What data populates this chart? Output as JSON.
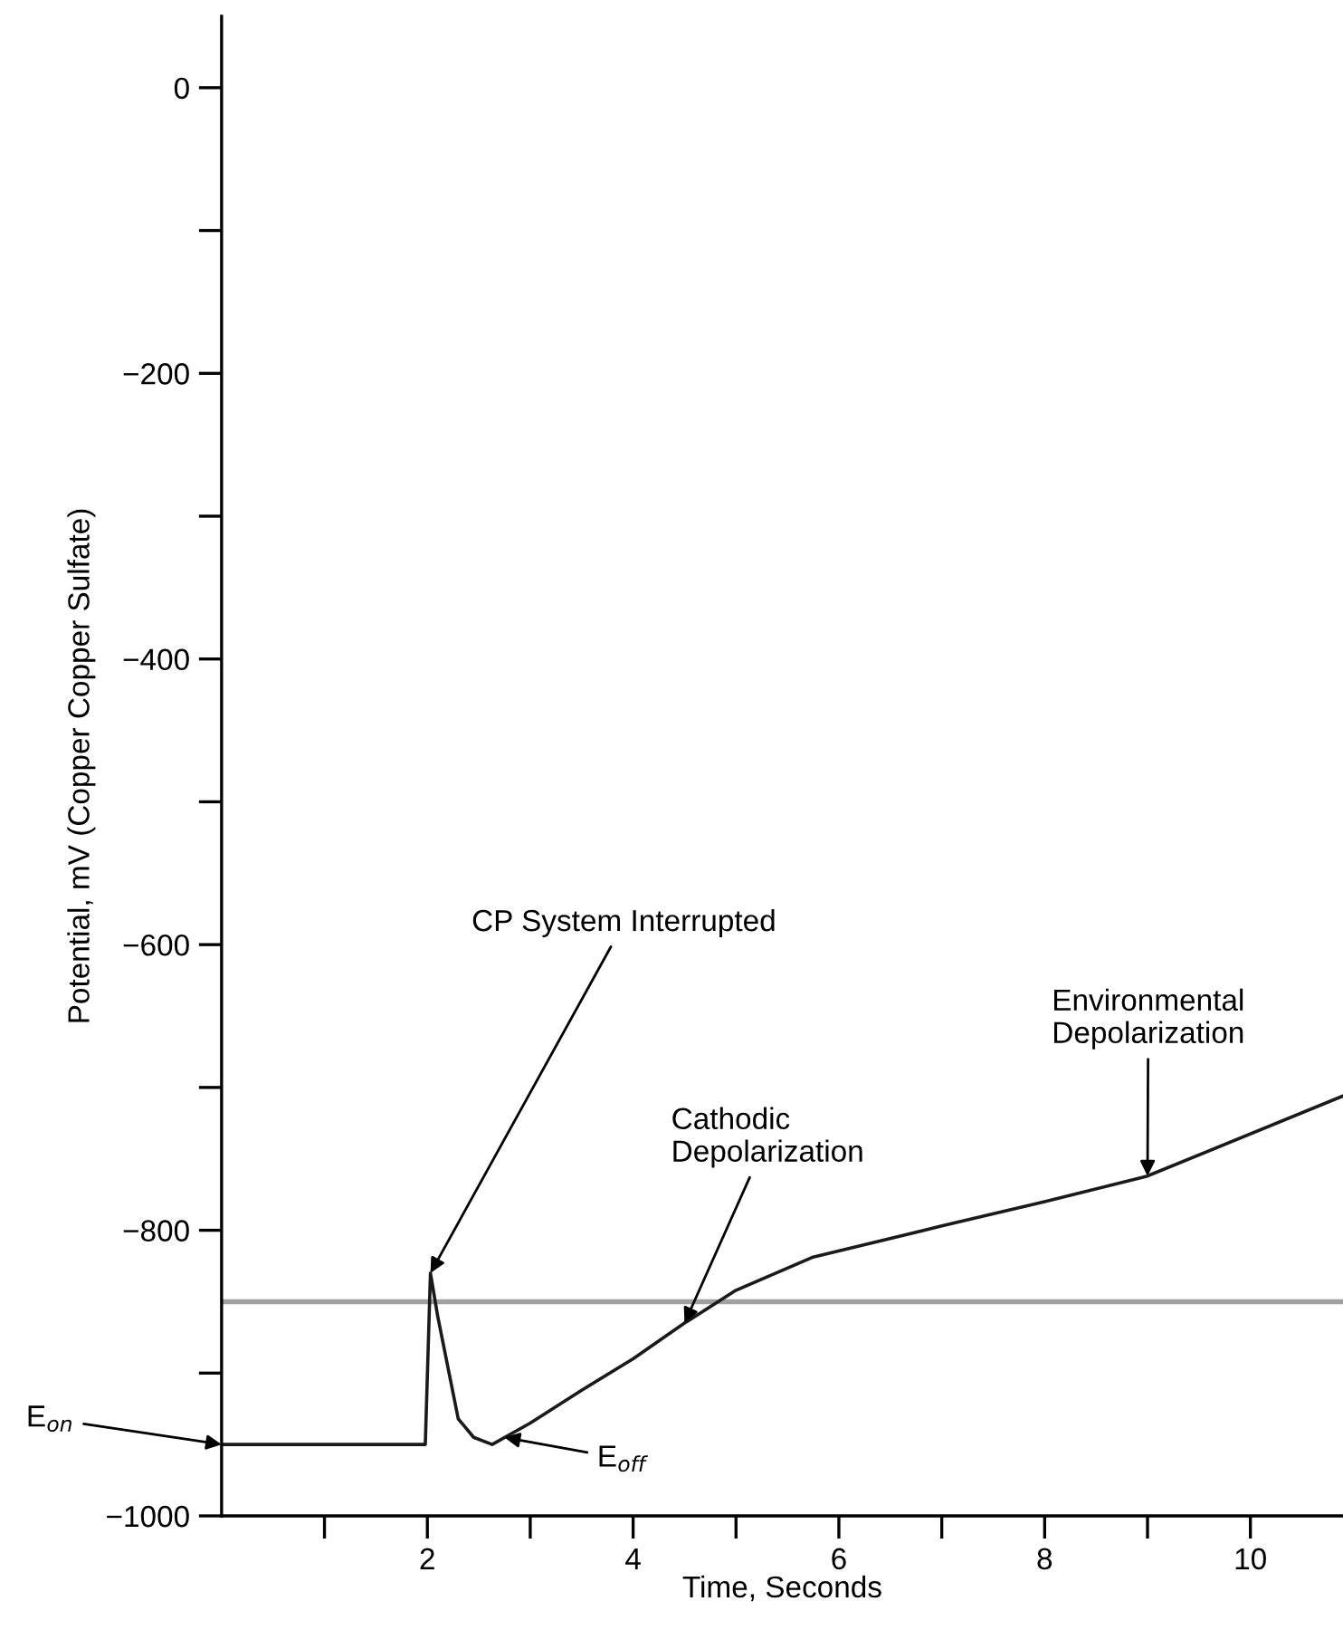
{
  "chart_data": {
    "type": "line",
    "xlabel": "Time, Seconds",
    "ylabel": "Potential, mV (Copper Copper Sulfate)",
    "x": [
      0,
      1.98,
      2.03,
      2.1,
      2.3,
      2.45,
      2.63,
      3.0,
      3.5,
      4.0,
      4.5,
      5.0,
      5.74,
      7.0,
      8.0,
      9.0,
      10.9
    ],
    "series": [
      {
        "color": "#1a1a1a",
        "values": [
          -950,
          -950,
          -830,
          -860,
          -932,
          -945,
          -950,
          -935,
          -912,
          -890,
          -865,
          -842,
          -819,
          -797,
          -780,
          -762,
          -706
        ]
      }
    ],
    "xlim": [
      0,
      10.9
    ],
    "ylim": [
      -1000,
      50
    ],
    "xticks": [
      {
        "value": 1,
        "label": null
      },
      2,
      {
        "value": 3,
        "label": null
      },
      4,
      {
        "value": 5,
        "label": null
      },
      6,
      {
        "value": 7,
        "label": null
      },
      8,
      {
        "value": 9,
        "label": null
      },
      10
    ],
    "yticks": [
      {
        "value": 0,
        "label": "0"
      },
      {
        "value": -100,
        "label": null
      },
      {
        "value": -200,
        "label": "−200"
      },
      {
        "value": -300,
        "label": null
      },
      {
        "value": -400,
        "label": "−400"
      },
      {
        "value": -500,
        "label": null
      },
      {
        "value": -600,
        "label": "−600"
      },
      {
        "value": -700,
        "label": null
      },
      {
        "value": -800,
        "label": "−800"
      },
      {
        "value": -900,
        "label": null
      },
      {
        "value": -1000,
        "label": "−1000"
      }
    ],
    "ref_lines": [
      {
        "axis": "y",
        "value": -850,
        "color": "#a0a0a0"
      }
    ],
    "annotations": [
      {
        "text": "CP System Interrupted",
        "x": 2.03,
        "y": -830
      },
      {
        "text": "Cathodic\nDepolarization",
        "x": 4.5,
        "y": -865
      },
      {
        "text": "Environmental\nDepolarization",
        "x": 9.0,
        "y": -762
      },
      {
        "text": "E$_{off}$",
        "x": 2.75,
        "y": -945
      },
      {
        "text": "E$_{on}$",
        "x": 0,
        "y": -950
      }
    ],
    "grid": false,
    "legend": false,
    "marker": "none",
    "line_style": "solid"
  }
}
